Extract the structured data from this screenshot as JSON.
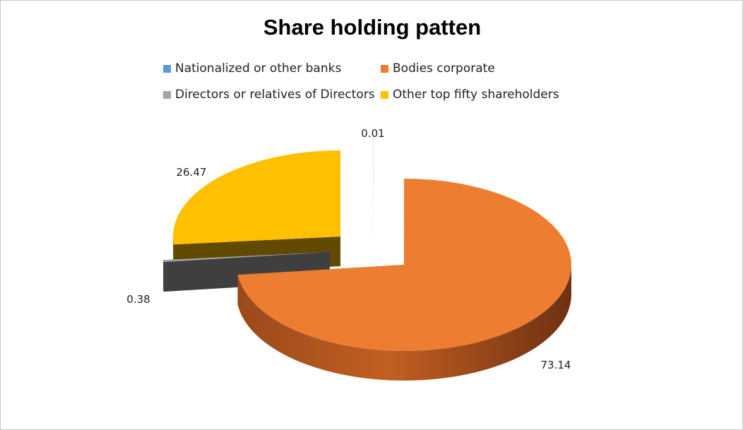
{
  "chart_data": {
    "type": "pie",
    "title": "Share holding patten",
    "series": [
      {
        "name": "Nationalized or other banks",
        "value": 0.01,
        "color": "#5b9bd5"
      },
      {
        "name": "Bodies corporate",
        "value": 73.14,
        "color": "#ed7d31"
      },
      {
        "name": "Directors or relatives of Directors",
        "value": 0.38,
        "color": "#a5a5a5"
      },
      {
        "name": "Other top fifty shareholders",
        "value": 26.47,
        "color": "#ffc000"
      }
    ],
    "labels": [
      "0.01",
      "73.14",
      "0.38",
      "26.47"
    ],
    "legend_position": "top",
    "style": "3d-exploded"
  }
}
